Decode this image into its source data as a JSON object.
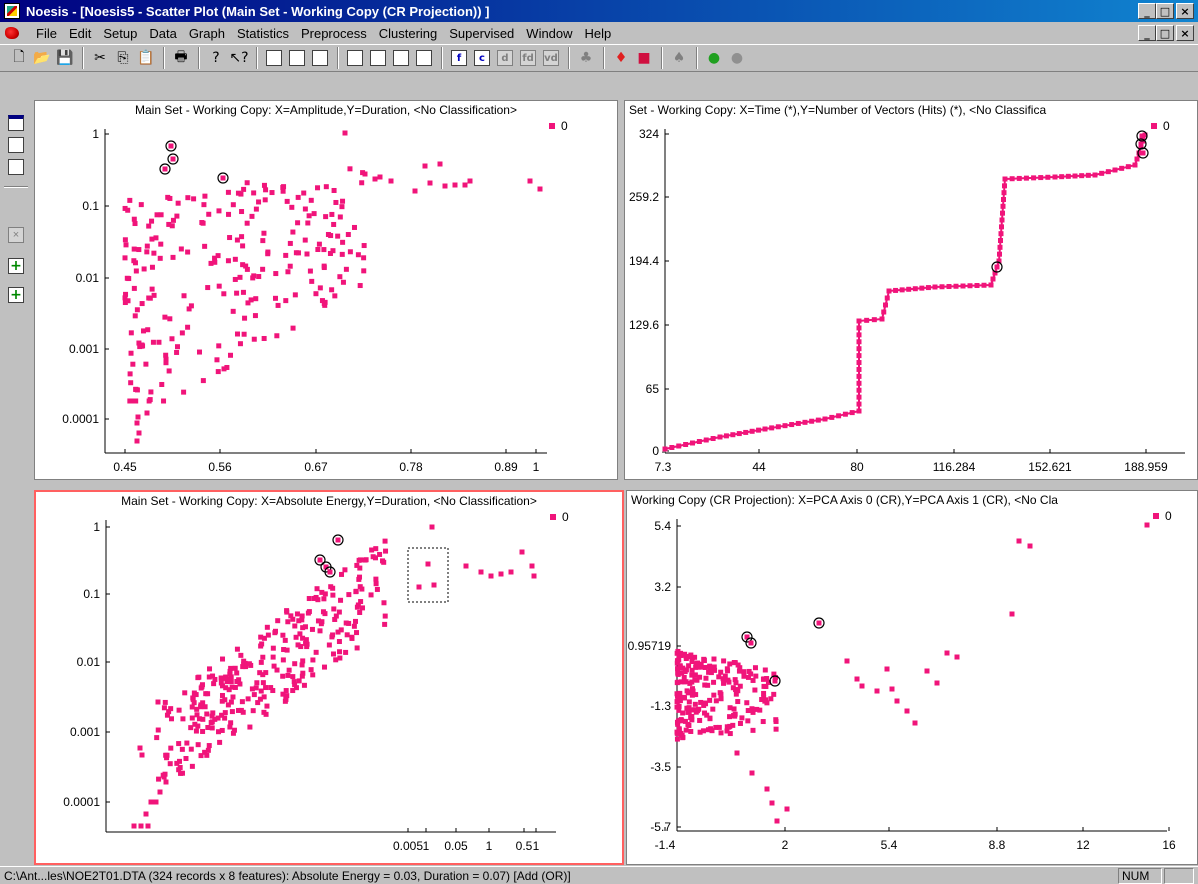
{
  "window": {
    "title": "Noesis - [Noesis5 - Scatter Plot (Main Set - Working Copy (CR Projection)) ]",
    "controls": [
      "_",
      "□",
      "×"
    ]
  },
  "menu": {
    "items": [
      "File",
      "Edit",
      "Setup",
      "Data",
      "Graph",
      "Statistics",
      "Preprocess",
      "Clustering",
      "Supervised",
      "Window",
      "Help"
    ]
  },
  "toolbar": {
    "letter_buttons": [
      "f",
      "c",
      "d",
      "fd",
      "vd"
    ]
  },
  "colors": {
    "point": "#f0147a",
    "selection_ring": "#000000",
    "active_border": "#ff6060"
  },
  "plots": [
    {
      "title": "Main Set - Working Copy: X=Amplitude,Y=Duration, <No Classification>",
      "legend": "0",
      "x_ticks": [
        "0.45",
        "0.56",
        "0.67",
        "0.78",
        "0.89",
        "1"
      ],
      "y_ticks": [
        "1",
        "0.1",
        "0.01",
        "0.001",
        "0.0001"
      ]
    },
    {
      "title": "Set - Working Copy: X=Time (*),Y=Number of Vectors (Hits) (*), <No Classifica",
      "legend": "0",
      "x_ticks": [
        "7.3",
        "44",
        "80",
        "116.284",
        "152.621",
        "188.959"
      ],
      "y_ticks": [
        "324",
        "259.2",
        "194.4",
        "129.6",
        "65",
        "0"
      ]
    },
    {
      "title": "Main Set - Working Copy: X=Absolute Energy,Y=Duration, <No Classification>",
      "legend": "0",
      "x_ticks": [
        "0.005",
        "1",
        "0.05",
        "1",
        "0.5",
        "1"
      ],
      "y_ticks": [
        "1",
        "0.1",
        "0.01",
        "0.001",
        "0.0001"
      ]
    },
    {
      "title": "Working Copy (CR Projection): X=PCA Axis 0 (CR),Y=PCA Axis 1 (CR), <No Cla",
      "legend": "0",
      "x_ticks": [
        "-1.4",
        "2",
        "5.4",
        "8.8",
        "12",
        "16"
      ],
      "y_ticks": [
        "5.4",
        "3.2",
        "0.95719",
        "-1.3",
        "-3.5",
        "-5.7"
      ]
    }
  ],
  "status": {
    "text": "C:\\Ant...les\\NOE2T01.DTA (324 records x 8 features): Absolute Energy = 0.03, Duration = 0.07)  [Add (OR)]",
    "num": "NUM"
  }
}
